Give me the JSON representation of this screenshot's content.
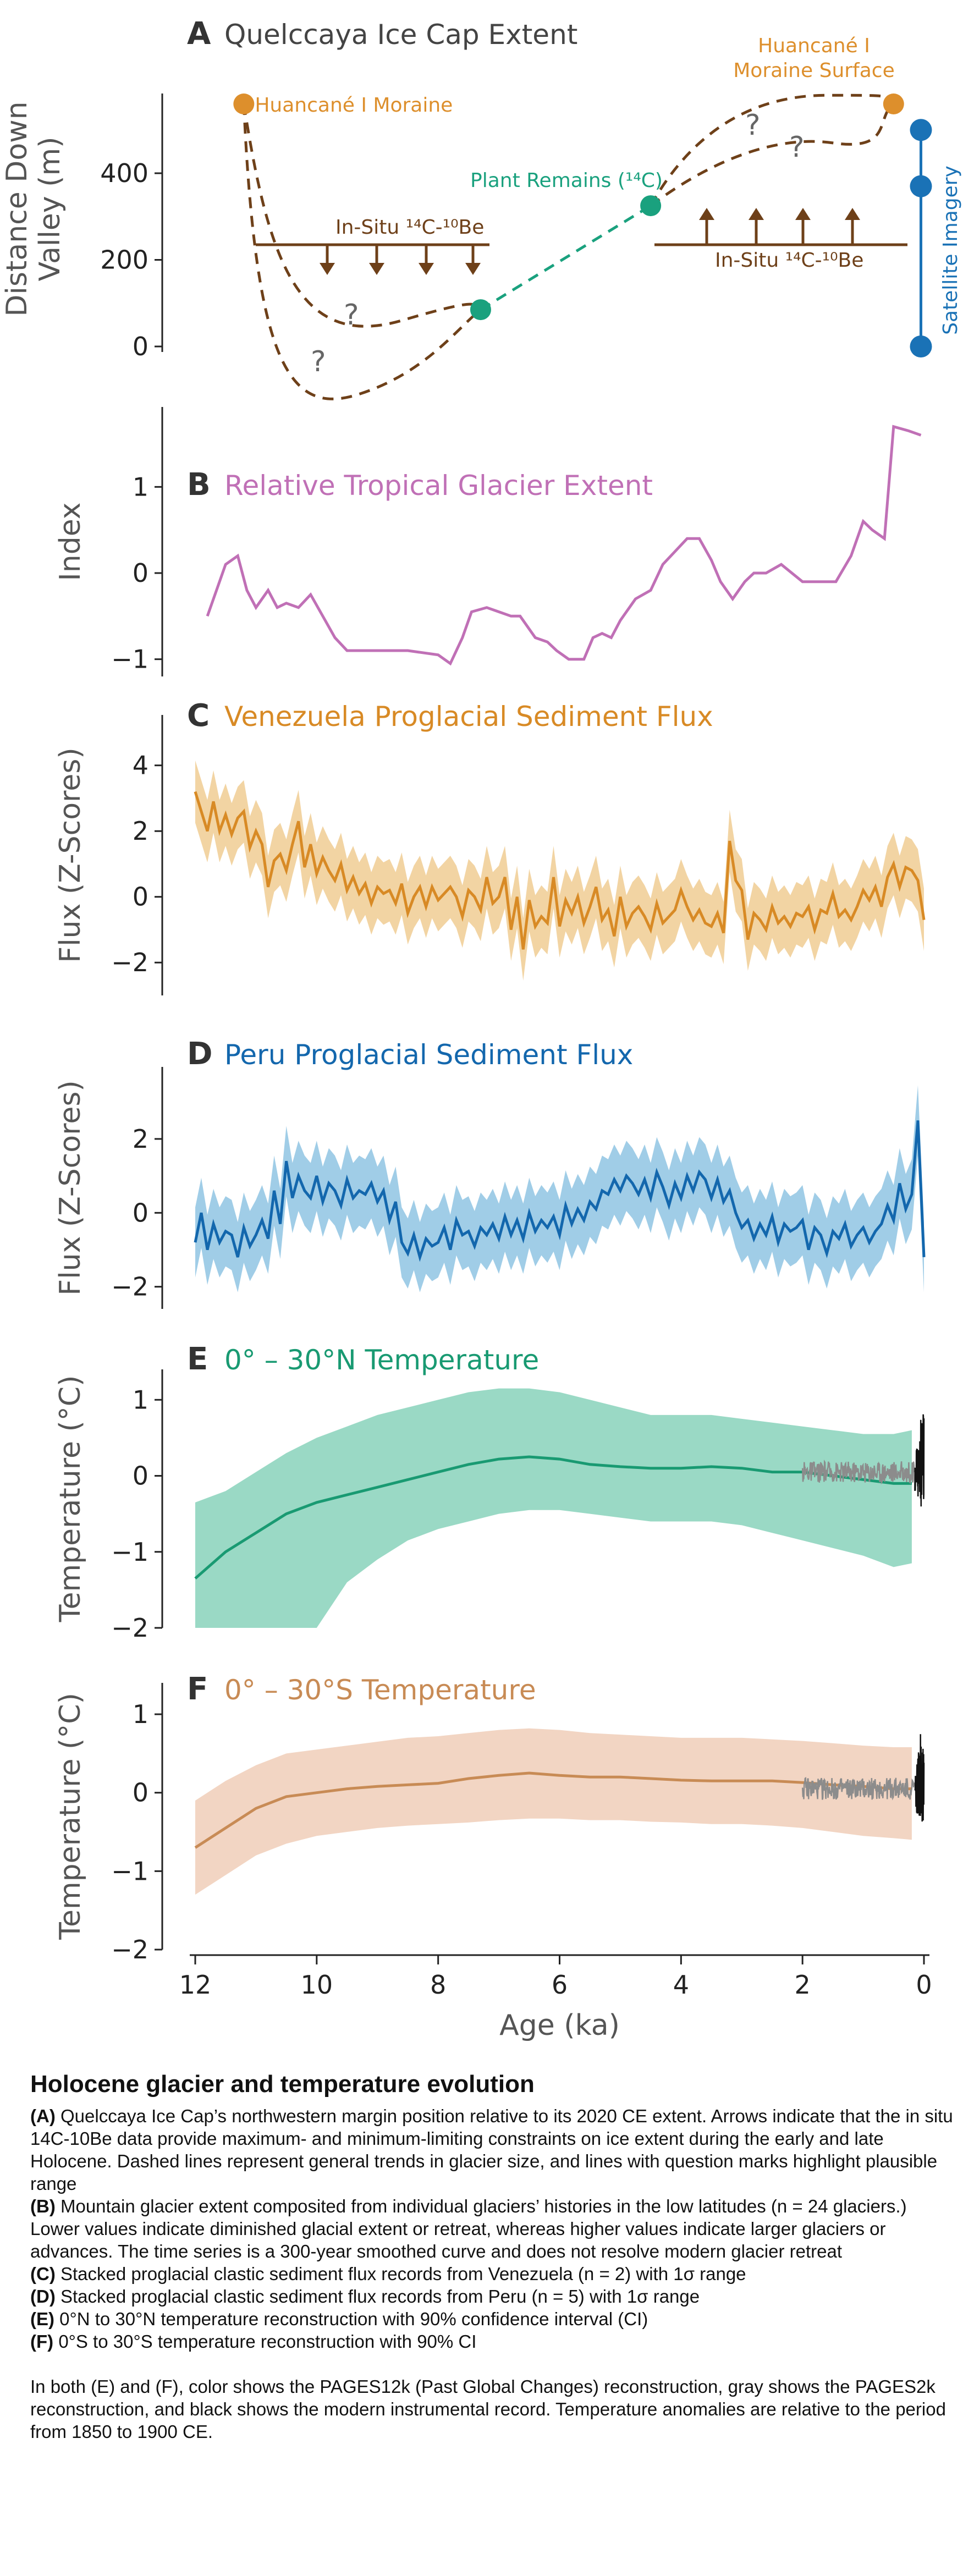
{
  "colors": {
    "axis": "#222222",
    "axis_label": "#555555",
    "a_orange": "#dd8f2c",
    "a_brown": "#6e4019",
    "a_green": "#1aa17e",
    "a_blue": "#1a72b6",
    "a_question": "#666666",
    "b": "#c070b6",
    "c_line": "#d88a25",
    "c_band": "#f0cd93",
    "d_line": "#1367ad",
    "d_band": "#8fc4e3",
    "e_line": "#199a72",
    "e_band": "#8fd5bf",
    "f_line": "#c88b55",
    "f_band": "#f1d0bc",
    "gray": "#8c8c8c",
    "black": "#111111"
  },
  "shared_x": {
    "label": "Age (ka)",
    "ticks": [
      12,
      10,
      8,
      6,
      4,
      2,
      0
    ]
  },
  "chart_data": [
    {
      "id": "A",
      "type": "diagram",
      "letter": "A",
      "title": "Quelccaya Ice Cap Extent",
      "ylabel": [
        "Distance Down",
        "Valley (m)"
      ],
      "yticks": [
        0,
        200,
        400
      ],
      "labels": {
        "moraine": "Huancané I Moraine",
        "moraine_surface": [
          "Huancané I",
          "Moraine Surface"
        ],
        "plant_remains": "Plant Remains (¹⁴C)",
        "insitu": "In-Situ ¹⁴C-¹⁰Be",
        "satellite": "Satellite Imagery",
        "question": "?"
      },
      "points": {
        "moraine": {
          "age": 11.2,
          "dist": 560
        },
        "insitu_early": {
          "age": 7.3,
          "dist": 85
        },
        "plant_remains": {
          "age": 4.5,
          "dist": 325
        },
        "moraine_surface": {
          "age": 0.5,
          "dist": 560
        },
        "satellite": [
          {
            "age": 0.05,
            "dist": 500
          },
          {
            "age": 0.05,
            "dist": 370
          },
          {
            "age": 0.05,
            "dist": 0
          }
        ]
      }
    },
    {
      "id": "B",
      "type": "line",
      "letter": "B",
      "title": "Relative Tropical Glacier Extent",
      "ylabel": "Index",
      "ylim": [
        -1.2,
        1.8
      ],
      "yticks": [
        -1,
        0,
        1
      ],
      "x": [
        11.8,
        11.5,
        11.3,
        11.15,
        11.0,
        10.8,
        10.65,
        10.5,
        10.3,
        10.1,
        9.9,
        9.7,
        9.5,
        9.0,
        8.5,
        8.0,
        7.8,
        7.6,
        7.45,
        7.2,
        7.0,
        6.8,
        6.65,
        6.4,
        6.2,
        6.05,
        5.85,
        5.6,
        5.45,
        5.3,
        5.15,
        5.0,
        4.75,
        4.5,
        4.3,
        4.1,
        3.9,
        3.7,
        3.5,
        3.35,
        3.15,
        2.95,
        2.8,
        2.6,
        2.35,
        2.0,
        1.7,
        1.45,
        1.2,
        1.0,
        0.85,
        0.65,
        0.5,
        0.25,
        0.05
      ],
      "y": [
        -0.5,
        0.1,
        0.2,
        -0.2,
        -0.4,
        -0.2,
        -0.4,
        -0.35,
        -0.4,
        -0.25,
        -0.5,
        -0.75,
        -0.9,
        -0.9,
        -0.9,
        -0.95,
        -1.05,
        -0.75,
        -0.45,
        -0.4,
        -0.45,
        -0.5,
        -0.5,
        -0.75,
        -0.8,
        -0.9,
        -1.0,
        -1.0,
        -0.75,
        -0.7,
        -0.75,
        -0.55,
        -0.3,
        -0.2,
        0.1,
        0.25,
        0.4,
        0.4,
        0.15,
        -0.1,
        -0.3,
        -0.1,
        0.0,
        0.0,
        0.1,
        -0.1,
        -0.1,
        -0.1,
        0.2,
        0.6,
        0.5,
        0.4,
        1.7,
        1.65,
        1.6
      ]
    },
    {
      "id": "C",
      "type": "line_band",
      "letter": "C",
      "title": "Venezuela Proglacial Sediment Flux",
      "ylabel": "Flux (Z-Scores)",
      "ylim": [
        -3.0,
        5.2
      ],
      "yticks": [
        -2,
        0,
        2,
        4
      ],
      "x": [
        12.0,
        11.9,
        11.8,
        11.7,
        11.6,
        11.5,
        11.4,
        11.3,
        11.2,
        11.1,
        11.0,
        10.9,
        10.8,
        10.7,
        10.6,
        10.5,
        10.4,
        10.3,
        10.2,
        10.1,
        10.0,
        9.9,
        9.8,
        9.7,
        9.6,
        9.5,
        9.4,
        9.3,
        9.2,
        9.1,
        9.0,
        8.9,
        8.8,
        8.7,
        8.6,
        8.5,
        8.4,
        8.3,
        8.2,
        8.1,
        8.0,
        7.9,
        7.8,
        7.7,
        7.6,
        7.5,
        7.4,
        7.3,
        7.2,
        7.1,
        7.0,
        6.9,
        6.8,
        6.7,
        6.6,
        6.5,
        6.4,
        6.3,
        6.2,
        6.1,
        6.0,
        5.9,
        5.8,
        5.7,
        5.6,
        5.5,
        5.4,
        5.3,
        5.2,
        5.1,
        5.0,
        4.9,
        4.8,
        4.7,
        4.6,
        4.5,
        4.4,
        4.3,
        4.2,
        4.1,
        4.0,
        3.9,
        3.8,
        3.7,
        3.6,
        3.5,
        3.4,
        3.3,
        3.2,
        3.1,
        3.0,
        2.9,
        2.8,
        2.7,
        2.6,
        2.5,
        2.4,
        2.3,
        2.2,
        2.1,
        2.0,
        1.9,
        1.8,
        1.7,
        1.6,
        1.5,
        1.4,
        1.3,
        1.2,
        1.1,
        1.0,
        0.9,
        0.8,
        0.7,
        0.6,
        0.5,
        0.4,
        0.3,
        0.2,
        0.1,
        0.0
      ],
      "y": [
        3.2,
        2.6,
        2.0,
        2.9,
        2.0,
        2.5,
        1.9,
        2.4,
        2.6,
        1.5,
        2.0,
        1.6,
        0.3,
        1.1,
        1.3,
        0.8,
        1.6,
        2.3,
        0.9,
        1.6,
        0.7,
        1.2,
        0.8,
        0.5,
        1.0,
        0.2,
        0.6,
        0.1,
        0.4,
        -0.2,
        0.3,
        0.1,
        0.2,
        -0.2,
        0.4,
        -0.5,
        0.0,
        0.3,
        -0.3,
        0.3,
        -0.1,
        0.1,
        0.3,
        0.0,
        -0.6,
        0.2,
        0.0,
        -0.4,
        0.6,
        -0.2,
        0.0,
        0.6,
        -1.0,
        0.0,
        -1.6,
        -0.1,
        -0.9,
        -0.6,
        -0.8,
        0.6,
        -0.9,
        -0.1,
        -0.5,
        0.0,
        -0.8,
        -0.3,
        0.3,
        -0.7,
        -0.4,
        -1.2,
        0.0,
        -0.9,
        -0.5,
        -0.3,
        -0.6,
        -1.0,
        -0.2,
        -0.8,
        -0.6,
        -0.4,
        0.2,
        -0.3,
        -0.7,
        -0.4,
        -0.8,
        -0.9,
        -0.5,
        -1.1,
        1.7,
        0.5,
        0.2,
        -1.3,
        -0.5,
        -0.7,
        -1.0,
        -0.3,
        -0.8,
        -0.6,
        -0.9,
        -0.5,
        -0.6,
        -0.3,
        -1.0,
        -0.4,
        -0.5,
        0.1,
        -0.6,
        -0.4,
        -0.7,
        -0.3,
        0.2,
        -0.1,
        0.3,
        -0.3,
        0.6,
        1.0,
        0.3,
        0.9,
        0.8,
        0.5,
        -0.7
      ],
      "band_halfwidth": 0.95
    },
    {
      "id": "D",
      "type": "line_band",
      "letter": "D",
      "title": "Peru Proglacial Sediment Flux",
      "ylabel": "Flux (Z-Scores)",
      "ylim": [
        -2.6,
        3.8
      ],
      "yticks": [
        -2,
        0,
        2
      ],
      "x": [
        12.0,
        11.9,
        11.8,
        11.7,
        11.6,
        11.5,
        11.4,
        11.3,
        11.2,
        11.1,
        11.0,
        10.9,
        10.8,
        10.7,
        10.6,
        10.5,
        10.4,
        10.3,
        10.2,
        10.1,
        10.0,
        9.9,
        9.8,
        9.7,
        9.6,
        9.5,
        9.4,
        9.3,
        9.2,
        9.1,
        9.0,
        8.9,
        8.8,
        8.7,
        8.6,
        8.5,
        8.4,
        8.3,
        8.2,
        8.1,
        8.0,
        7.9,
        7.8,
        7.7,
        7.6,
        7.5,
        7.4,
        7.3,
        7.2,
        7.1,
        7.0,
        6.9,
        6.8,
        6.7,
        6.6,
        6.5,
        6.4,
        6.3,
        6.2,
        6.1,
        6.0,
        5.9,
        5.8,
        5.7,
        5.6,
        5.5,
        5.4,
        5.3,
        5.2,
        5.1,
        5.0,
        4.9,
        4.8,
        4.7,
        4.6,
        4.5,
        4.4,
        4.3,
        4.2,
        4.1,
        4.0,
        3.9,
        3.8,
        3.7,
        3.6,
        3.5,
        3.4,
        3.3,
        3.2,
        3.1,
        3.0,
        2.9,
        2.8,
        2.7,
        2.6,
        2.5,
        2.4,
        2.3,
        2.2,
        2.1,
        2.0,
        1.9,
        1.8,
        1.7,
        1.6,
        1.5,
        1.4,
        1.3,
        1.2,
        1.1,
        1.0,
        0.9,
        0.8,
        0.7,
        0.6,
        0.5,
        0.4,
        0.3,
        0.2,
        0.1,
        0.0
      ],
      "y": [
        -0.8,
        0.0,
        -1.0,
        -0.3,
        -0.8,
        -0.5,
        -0.6,
        -1.2,
        -0.4,
        -0.9,
        -0.6,
        -0.2,
        -0.7,
        0.6,
        -0.3,
        1.4,
        0.4,
        1.0,
        0.6,
        0.4,
        1.0,
        0.3,
        0.8,
        0.6,
        0.2,
        0.9,
        0.4,
        0.6,
        0.5,
        0.8,
        0.3,
        0.6,
        -0.2,
        0.3,
        -0.8,
        -1.1,
        -0.6,
        -1.2,
        -0.7,
        -0.9,
        -0.8,
        -0.4,
        -1.0,
        -0.2,
        -0.6,
        -0.5,
        -0.9,
        -0.4,
        -0.6,
        -0.3,
        -0.7,
        -0.1,
        -0.6,
        -0.2,
        -0.7,
        0.0,
        -0.5,
        -0.2,
        -0.4,
        -0.1,
        -0.6,
        0.2,
        -0.3,
        0.1,
        -0.2,
        0.3,
        0.1,
        0.6,
        0.5,
        0.9,
        0.6,
        1.0,
        0.8,
        0.5,
        0.9,
        0.4,
        1.1,
        0.7,
        0.2,
        0.8,
        0.4,
        1.0,
        0.6,
        1.1,
        0.9,
        0.4,
        0.9,
        0.3,
        0.6,
        0.0,
        -0.4,
        -0.2,
        -0.7,
        -0.3,
        -0.6,
        -0.1,
        -0.8,
        -0.3,
        -0.5,
        -0.4,
        -0.2,
        -1.0,
        -0.4,
        -0.6,
        -1.1,
        -0.5,
        -0.7,
        -0.3,
        -0.9,
        -0.6,
        -0.4,
        -0.8,
        -0.5,
        -0.3,
        0.2,
        -0.2,
        0.8,
        0.1,
        0.5,
        2.5,
        -1.2
      ],
      "band_halfwidth": 0.95
    },
    {
      "id": "E",
      "type": "line_band_records",
      "letter": "E",
      "title": "0° – 30°N Temperature",
      "ylabel": "Temperature (°C)",
      "ylim": [
        -2.0,
        1.4
      ],
      "yticks": [
        -2,
        -1,
        0,
        1
      ],
      "x": [
        12.0,
        11.5,
        11.0,
        10.5,
        10.0,
        9.5,
        9.0,
        8.5,
        8.0,
        7.5,
        7.0,
        6.5,
        6.0,
        5.5,
        5.0,
        4.5,
        4.0,
        3.5,
        3.0,
        2.5,
        2.0,
        1.5,
        1.0,
        0.5,
        0.2
      ],
      "y": [
        -1.35,
        -1.0,
        -0.75,
        -0.5,
        -0.35,
        -0.25,
        -0.15,
        -0.05,
        0.05,
        0.15,
        0.22,
        0.25,
        0.22,
        0.15,
        0.12,
        0.1,
        0.1,
        0.12,
        0.1,
        0.05,
        0.05,
        0.0,
        -0.05,
        -0.1,
        -0.1
      ],
      "lower": [
        -2.0,
        -2.0,
        -2.0,
        -2.0,
        -2.0,
        -1.4,
        -1.1,
        -0.85,
        -0.7,
        -0.6,
        -0.5,
        -0.45,
        -0.45,
        -0.5,
        -0.55,
        -0.6,
        -0.6,
        -0.6,
        -0.65,
        -0.75,
        -0.85,
        -0.95,
        -1.05,
        -1.2,
        -1.15
      ],
      "upper": [
        -0.35,
        -0.2,
        0.05,
        0.3,
        0.5,
        0.65,
        0.8,
        0.9,
        1.0,
        1.1,
        1.15,
        1.15,
        1.1,
        1.0,
        0.9,
        0.8,
        0.8,
        0.8,
        0.75,
        0.7,
        0.65,
        0.6,
        0.55,
        0.55,
        0.6
      ],
      "gray_range": [
        2.0,
        0.15
      ],
      "gray_center": 0.05,
      "black_range": [
        0.15,
        0.0
      ]
    },
    {
      "id": "F",
      "type": "line_band_records",
      "letter": "F",
      "title": "0° – 30°S Temperature",
      "ylabel": "Temperature (°C)",
      "ylim": [
        -2.0,
        1.4
      ],
      "yticks": [
        -2,
        -1,
        0,
        1
      ],
      "x": [
        12.0,
        11.5,
        11.0,
        10.5,
        10.0,
        9.5,
        9.0,
        8.5,
        8.0,
        7.5,
        7.0,
        6.5,
        6.0,
        5.5,
        5.0,
        4.5,
        4.0,
        3.5,
        3.0,
        2.5,
        2.0,
        1.5,
        1.0,
        0.5,
        0.2
      ],
      "y": [
        -0.7,
        -0.45,
        -0.2,
        -0.05,
        0.0,
        0.05,
        0.08,
        0.1,
        0.12,
        0.18,
        0.22,
        0.25,
        0.22,
        0.2,
        0.2,
        0.18,
        0.16,
        0.15,
        0.15,
        0.15,
        0.13,
        0.1,
        0.08,
        0.05,
        0.05
      ],
      "lower": [
        -1.3,
        -1.05,
        -0.8,
        -0.65,
        -0.55,
        -0.5,
        -0.45,
        -0.42,
        -0.4,
        -0.38,
        -0.35,
        -0.33,
        -0.33,
        -0.35,
        -0.35,
        -0.37,
        -0.38,
        -0.4,
        -0.4,
        -0.42,
        -0.45,
        -0.5,
        -0.55,
        -0.58,
        -0.6
      ],
      "upper": [
        -0.1,
        0.15,
        0.35,
        0.5,
        0.55,
        0.6,
        0.65,
        0.7,
        0.72,
        0.76,
        0.8,
        0.82,
        0.8,
        0.76,
        0.74,
        0.72,
        0.7,
        0.7,
        0.7,
        0.68,
        0.66,
        0.63,
        0.6,
        0.58,
        0.58
      ],
      "gray_range": [
        2.0,
        0.15
      ],
      "gray_center": 0.05,
      "black_range": [
        0.15,
        0.0
      ]
    }
  ],
  "caption": {
    "title": "Holocene glacier and temperature evolution",
    "items": [
      {
        "tag": "(A)",
        "text": "Quelccaya Ice Cap’s northwestern margin position relative to its 2020 CE extent. Arrows indicate that the in situ 14C-10Be data provide maximum- and minimum-limiting constraints on ice extent during the early and late Holocene. Dashed lines represent general trends in glacier size, and lines with question marks highlight plausible range"
      },
      {
        "tag": "(B)",
        "text": "Mountain glacier extent composited from individual glaciers’ histories in the low latitudes (n = 24 glaciers.) Lower values indicate diminished glacial extent or retreat, whereas higher values indicate larger glaciers or advances. The time series is a 300-year smoothed curve and does not resolve modern glacier retreat"
      },
      {
        "tag": "(C)",
        "text": "Stacked proglacial clastic sediment flux records from Venezuela (n = 2) with 1σ range"
      },
      {
        "tag": "(D)",
        "text": "Stacked proglacial clastic sediment flux records from Peru (n = 5) with 1σ range"
      },
      {
        "tag": "(E)",
        "text": "0°N to 30°N temperature reconstruction with 90% confidence interval (CI)"
      },
      {
        "tag": "(F)",
        "text": "0°S to 30°S temperature reconstruction with 90% CI"
      }
    ],
    "note": "In both (E) and (F), color shows the PAGES12k (Past Global Changes) reconstruction, gray shows the PAGES2k reconstruction, and black shows the modern instrumental record. Temperature anomalies are relative to the period from 1850 to 1900 CE."
  }
}
